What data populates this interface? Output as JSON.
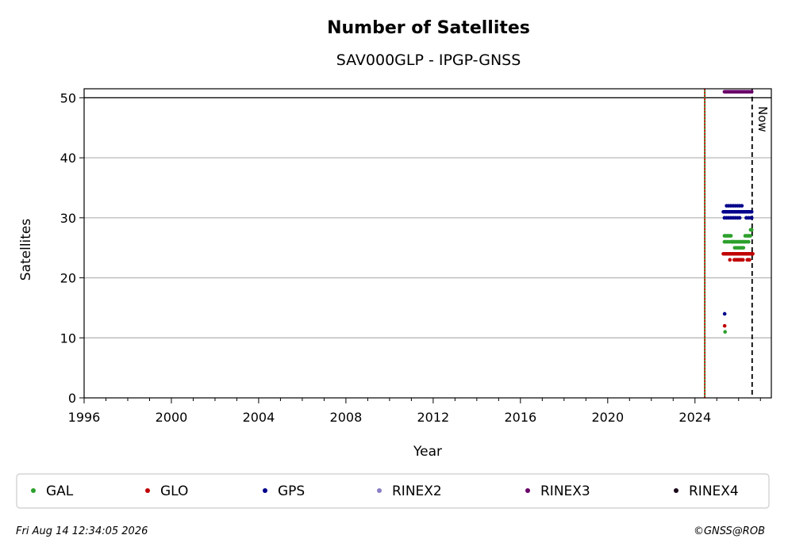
{
  "chart_data": {
    "type": "scatter",
    "title": "Number of Satellites",
    "subtitle": "SAV000GLP - IPGP-GNSS",
    "xlabel": "Year",
    "ylabel": "Satellites",
    "xlim": [
      1996,
      2027.5
    ],
    "ylim": [
      0,
      51.5
    ],
    "xticks": [
      1996,
      2000,
      2004,
      2008,
      2012,
      2016,
      2020,
      2024
    ],
    "yticks": [
      0,
      10,
      20,
      30,
      40,
      50
    ],
    "grid": "horizontal",
    "legend_position": "bottom",
    "vlines": [
      {
        "x": 2024.45,
        "color": "#2e8b2e",
        "style": "solid"
      },
      {
        "x": 2024.45,
        "color": "#dd0000",
        "style": "dotted"
      },
      {
        "x": 2026.62,
        "color": "#000000",
        "style": "dashed",
        "label": "Now"
      }
    ],
    "hlines": [
      {
        "y": 50,
        "color": "#000000"
      }
    ],
    "series": [
      {
        "name": "GAL",
        "color": "#2ca02c",
        "x": [
          2025.35,
          2025.4,
          2025.45,
          2025.5,
          2025.55,
          2025.6,
          2025.65,
          2025.7,
          2025.75,
          2025.8,
          2025.85,
          2025.9,
          2025.95,
          2026.0,
          2026.05,
          2026.1,
          2026.15,
          2026.2,
          2026.25,
          2026.3,
          2026.35,
          2026.4,
          2026.45,
          2026.5,
          2026.55,
          2026.6,
          2025.35,
          2025.42,
          2025.5,
          2025.58,
          2025.66,
          2025.74,
          2025.82,
          2025.9,
          2025.98,
          2026.06,
          2026.14,
          2026.22,
          2026.3,
          2026.38,
          2026.46,
          2026.54,
          2025.8,
          2025.9,
          2026.0,
          2026.1,
          2026.2,
          2026.35,
          2026.45,
          2026.55,
          2026.6,
          2025.38
        ],
        "y": [
          27,
          27,
          27,
          27,
          27,
          27,
          27,
          26,
          26,
          26,
          26,
          26,
          26,
          26,
          26,
          26,
          26,
          26,
          26,
          27,
          27,
          27,
          27,
          27,
          28,
          28,
          26,
          26,
          26,
          26,
          26,
          26,
          25,
          25,
          25,
          25,
          25,
          25,
          26,
          26,
          26,
          27,
          24,
          24,
          24,
          24,
          24,
          24,
          24,
          24,
          24,
          11
        ]
      },
      {
        "name": "GLO",
        "color": "#c00000",
        "x": [
          2025.3,
          2025.35,
          2025.4,
          2025.45,
          2025.5,
          2025.55,
          2025.6,
          2025.65,
          2025.7,
          2025.75,
          2025.8,
          2025.85,
          2025.9,
          2025.95,
          2026.0,
          2026.05,
          2026.1,
          2026.15,
          2026.2,
          2026.25,
          2026.3,
          2026.35,
          2026.4,
          2026.45,
          2026.5,
          2026.55,
          2026.6,
          2026.65,
          2025.6,
          2025.8,
          2025.85,
          2025.9,
          2025.95,
          2026.0,
          2026.05,
          2026.1,
          2026.15,
          2026.2,
          2026.4,
          2026.45,
          2026.5,
          2025.36
        ],
        "y": [
          24,
          24,
          24,
          24,
          24,
          24,
          24,
          24,
          24,
          24,
          24,
          24,
          24,
          24,
          24,
          24,
          24,
          24,
          24,
          24,
          24,
          24,
          24,
          24,
          24,
          24,
          24,
          24,
          23,
          23,
          23,
          23,
          23,
          23,
          23,
          23,
          23,
          23,
          23,
          23,
          23,
          12
        ]
      },
      {
        "name": "GPS",
        "color": "#00008b",
        "x": [
          2025.3,
          2025.35,
          2025.4,
          2025.45,
          2025.5,
          2025.55,
          2025.6,
          2025.65,
          2025.7,
          2025.75,
          2025.8,
          2025.85,
          2025.9,
          2025.95,
          2026.0,
          2026.05,
          2026.1,
          2026.15,
          2026.2,
          2026.25,
          2026.3,
          2026.35,
          2026.4,
          2026.45,
          2026.5,
          2026.55,
          2026.6,
          2025.45,
          2025.55,
          2025.65,
          2025.75,
          2025.85,
          2025.95,
          2026.05,
          2026.15,
          2025.35,
          2025.45,
          2025.55,
          2025.65,
          2025.75,
          2025.85,
          2025.95,
          2026.05,
          2026.35,
          2026.45,
          2026.55,
          2026.6,
          2025.36
        ],
        "y": [
          31,
          31,
          31,
          31,
          31,
          31,
          31,
          31,
          31,
          31,
          31,
          31,
          31,
          31,
          31,
          31,
          31,
          31,
          31,
          31,
          31,
          31,
          31,
          31,
          31,
          31,
          31,
          32,
          32,
          32,
          32,
          32,
          32,
          32,
          32,
          30,
          30,
          30,
          30,
          30,
          30,
          30,
          30,
          30,
          30,
          30,
          30,
          14
        ]
      },
      {
        "name": "RINEX2",
        "color": "#8a7fc4",
        "x": [],
        "y": []
      },
      {
        "name": "RINEX3",
        "color": "#6a006a",
        "x": [
          2025.35,
          2025.4,
          2025.45,
          2025.5,
          2025.55,
          2025.6,
          2025.65,
          2025.7,
          2025.75,
          2025.8,
          2025.85,
          2025.9,
          2025.95,
          2026.0,
          2026.05,
          2026.1,
          2026.15,
          2026.2,
          2026.25,
          2026.3,
          2026.35,
          2026.4,
          2026.45,
          2026.5,
          2026.55,
          2026.6
        ],
        "y": [
          51,
          51,
          51,
          51,
          51,
          51,
          51,
          51,
          51,
          51,
          51,
          51,
          51,
          51,
          51,
          51,
          51,
          51,
          51,
          51,
          51,
          51,
          51,
          51,
          51,
          51
        ]
      },
      {
        "name": "RINEX4",
        "color": "#1a0a1a",
        "x": [],
        "y": []
      }
    ]
  },
  "footer": {
    "timestamp": "Fri Aug 14 12:34:05 2026",
    "credit": "©GNSS@ROB"
  }
}
